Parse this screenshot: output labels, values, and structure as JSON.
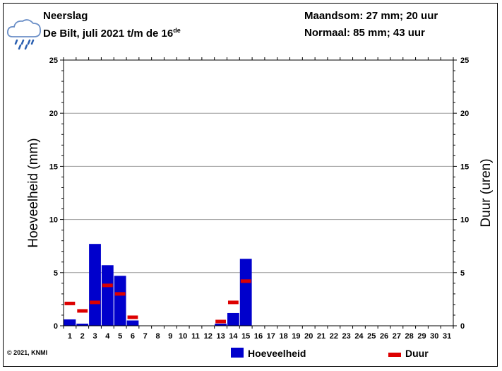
{
  "header": {
    "title": "Neerslag",
    "subtitle_main": "De Bilt, juli 2021 t/m de 16",
    "subtitle_sup": "de",
    "month_sum": "Maandsom: 27 mm; 20 uur",
    "normal": "Normaal: 85 mm; 43 uur",
    "icon": "rain-cloud-icon"
  },
  "footer": {
    "copyright": "© 2021, KNMI"
  },
  "colors": {
    "amount": "#0000cc",
    "duration": "#dd0000",
    "grid": "#999999"
  },
  "chart_data": {
    "type": "bar",
    "categories": [
      1,
      2,
      3,
      4,
      5,
      6,
      7,
      8,
      9,
      10,
      11,
      12,
      13,
      14,
      15,
      16,
      17,
      18,
      19,
      20,
      21,
      22,
      23,
      24,
      25,
      26,
      27,
      28,
      29,
      30,
      31
    ],
    "series": [
      {
        "name": "Hoeveelheid",
        "type": "bar",
        "axis": "left",
        "values": [
          0.6,
          0.2,
          7.7,
          5.7,
          4.7,
          0.5,
          0,
          0,
          0,
          0,
          0,
          0,
          0.2,
          1.2,
          6.3,
          0,
          0,
          0,
          0,
          0,
          0,
          0,
          0,
          0,
          0,
          0,
          0,
          0,
          0,
          0,
          0
        ]
      },
      {
        "name": "Duur",
        "type": "marker",
        "axis": "right",
        "values": [
          2.1,
          1.4,
          2.2,
          3.8,
          3.0,
          0.8,
          null,
          null,
          null,
          null,
          null,
          null,
          0.4,
          2.2,
          4.2,
          null,
          null,
          null,
          null,
          null,
          null,
          null,
          null,
          null,
          null,
          null,
          null,
          null,
          null,
          null,
          null
        ]
      }
    ],
    "ylabel": "Hoeveelheid (mm)",
    "y2label": "Duur (uren)",
    "ylim": [
      0,
      25
    ],
    "y2lim": [
      0,
      25
    ],
    "yticks": [
      0,
      5,
      10,
      15,
      20,
      25
    ],
    "grid": true,
    "legend": "bottom"
  }
}
